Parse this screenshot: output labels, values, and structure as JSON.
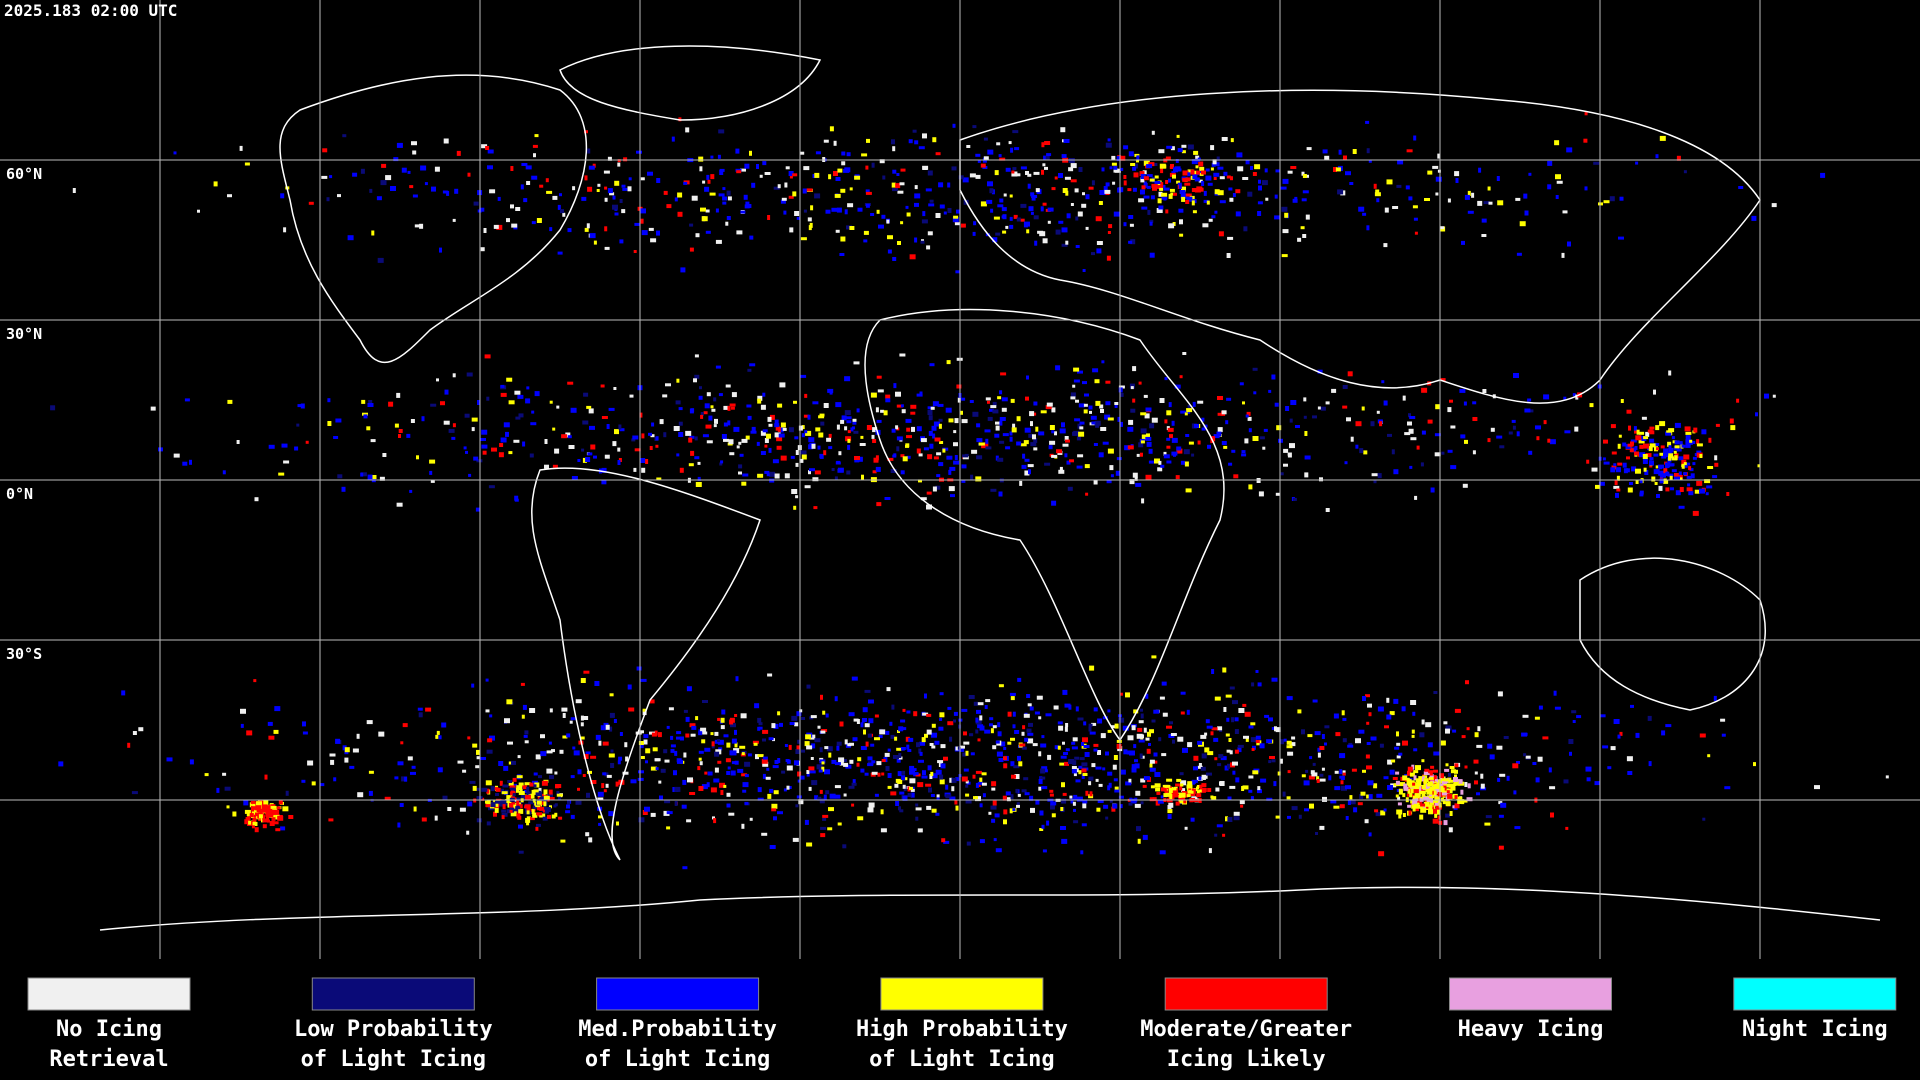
{
  "header": {
    "timestamp": "2025.183 02:00 UTC"
  },
  "map": {
    "lat_labels": [
      "60°N",
      "30°N",
      "0°N",
      "30°S"
    ]
  },
  "legend": {
    "items": [
      {
        "lines": [
          "No Icing",
          "Retrieval"
        ],
        "color": "#f0f0f0"
      },
      {
        "lines": [
          "Low Probability",
          "of Light Icing"
        ],
        "color": "#0a0a78"
      },
      {
        "lines": [
          "Med.Probability",
          "of Light Icing"
        ],
        "color": "#0000ff"
      },
      {
        "lines": [
          "High Probability",
          "of Light Icing"
        ],
        "color": "#ffff00"
      },
      {
        "lines": [
          "Moderate/Greater",
          "Icing Likely"
        ],
        "color": "#ff0000"
      },
      {
        "lines": [
          "Heavy Icing"
        ],
        "color": "#e8a0e0"
      },
      {
        "lines": [
          "Night Icing"
        ],
        "color": "#00ffff"
      }
    ]
  }
}
